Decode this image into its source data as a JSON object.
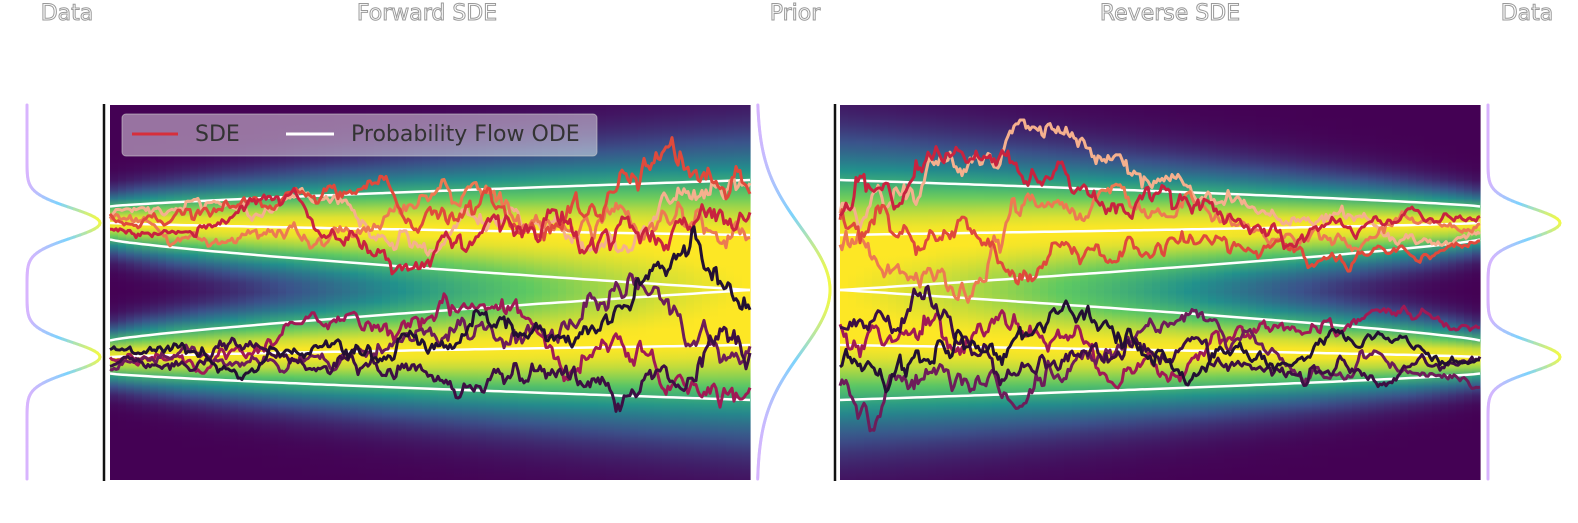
{
  "titles": [
    "Data",
    "Forward SDE",
    "Prior",
    "Reverse SDE",
    "Data"
  ],
  "legend": [
    "SDE",
    "Probability Flow ODE"
  ]
}
